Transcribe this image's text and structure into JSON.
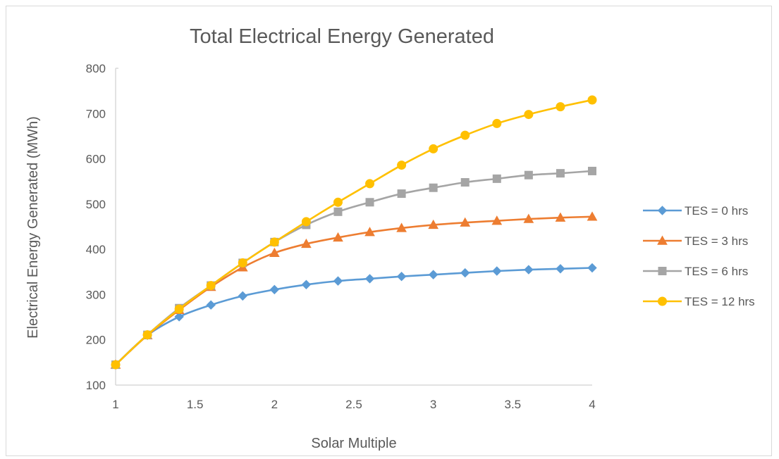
{
  "chart_data": {
    "type": "line",
    "title": "Total Electrical Energy Generated",
    "xlabel": "Solar Multiple",
    "ylabel": "Electrical Energy Generated (MWh)",
    "xlim": [
      1,
      4
    ],
    "ylim": [
      100,
      800
    ],
    "x_ticks": [
      "1",
      "1.5",
      "2",
      "2.5",
      "3",
      "3.5",
      "4"
    ],
    "y_ticks": [
      "100",
      "200",
      "300",
      "400",
      "500",
      "600",
      "700",
      "800"
    ],
    "x": [
      1.0,
      1.2,
      1.4,
      1.6,
      1.8,
      2.0,
      2.2,
      2.4,
      2.6,
      2.8,
      3.0,
      3.2,
      3.4,
      3.6,
      3.8,
      4.0
    ],
    "grid": false,
    "legend_position": "right",
    "series": [
      {
        "name": "TES = 0 hrs",
        "color": "#5b9bd5",
        "marker": "diamond",
        "values": [
          145,
          210,
          251,
          277,
          297,
          311,
          322,
          330,
          335,
          340,
          344,
          348,
          352,
          355,
          357,
          359
        ]
      },
      {
        "name": "TES = 3 hrs",
        "color": "#ed7d31",
        "marker": "triangle",
        "values": [
          145,
          210,
          266,
          317,
          360,
          392,
          412,
          426,
          438,
          447,
          454,
          459,
          463,
          467,
          470,
          472
        ]
      },
      {
        "name": "TES = 6 hrs",
        "color": "#a5a5a5",
        "marker": "square",
        "values": [
          145,
          211,
          270,
          320,
          370,
          416,
          454,
          483,
          504,
          523,
          536,
          548,
          556,
          564,
          568,
          573
        ]
      },
      {
        "name": "TES = 12 hrs",
        "color": "#ffc000",
        "marker": "circle",
        "values": [
          145,
          211,
          268,
          320,
          370,
          416,
          461,
          504,
          545,
          586,
          622,
          652,
          678,
          698,
          715,
          730
        ]
      }
    ]
  }
}
